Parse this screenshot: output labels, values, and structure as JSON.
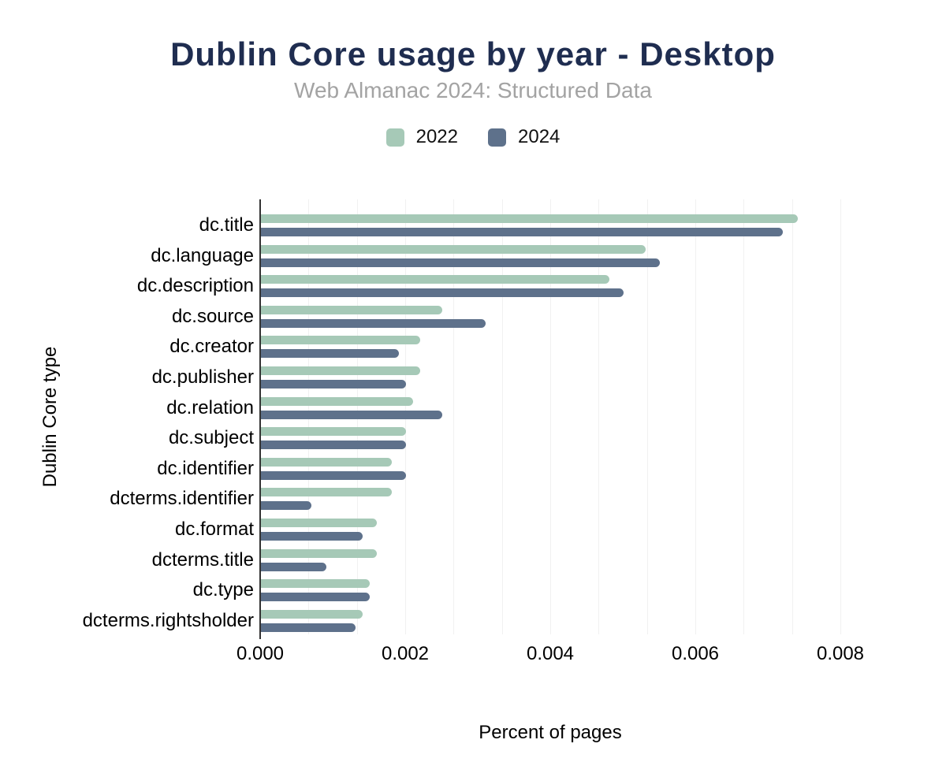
{
  "title": "Dublin Core usage by year - Desktop",
  "subtitle": "Web Almanac 2024: Structured Data",
  "legend": {
    "items": [
      {
        "label": "2022",
        "color": "#a6c9b7"
      },
      {
        "label": "2024",
        "color": "#5e718b"
      }
    ]
  },
  "axes": {
    "x_title": "Percent of pages",
    "y_title": "Dublin Core type"
  },
  "colors": {
    "title": "#1f2d50",
    "subtitle": "#a3a3a3",
    "series_2022": "#a6c9b7",
    "series_2024": "#5e718b",
    "axis_line": "#333333",
    "gridline": "#f1f1f1",
    "label_text": "#000000"
  },
  "chart_data": {
    "type": "bar",
    "orientation": "horizontal",
    "title": "Dublin Core usage by year - Desktop",
    "subtitle": "Web Almanac 2024: Structured Data",
    "xlabel": "Percent of pages",
    "ylabel": "Dublin Core type",
    "xlim": [
      0,
      0.008
    ],
    "xticks": [
      0,
      0.002,
      0.004,
      0.006,
      0.008
    ],
    "xtick_labels": [
      "0.000",
      "0.002",
      "0.004",
      "0.006",
      "0.008"
    ],
    "grid": "vertical-minor",
    "minor_grid_divisions_per_tick": 3,
    "legend_position": "top-center",
    "categories": [
      "dc.title",
      "dc.language",
      "dc.description",
      "dc.source",
      "dc.creator",
      "dc.publisher",
      "dc.relation",
      "dc.subject",
      "dc.identifier",
      "dcterms.identifier",
      "dc.format",
      "dcterms.title",
      "dc.type",
      "dcterms.rightsholder"
    ],
    "series": [
      {
        "name": "2022",
        "color": "#a6c9b7",
        "values": [
          0.0074,
          0.0053,
          0.0048,
          0.0025,
          0.0022,
          0.0022,
          0.0021,
          0.002,
          0.0018,
          0.0018,
          0.0016,
          0.0016,
          0.0015,
          0.0014
        ]
      },
      {
        "name": "2024",
        "color": "#5e718b",
        "values": [
          0.0072,
          0.0055,
          0.005,
          0.0031,
          0.0019,
          0.002,
          0.0025,
          0.002,
          0.002,
          0.0007,
          0.0014,
          0.0009,
          0.0015,
          0.0013
        ]
      }
    ]
  }
}
